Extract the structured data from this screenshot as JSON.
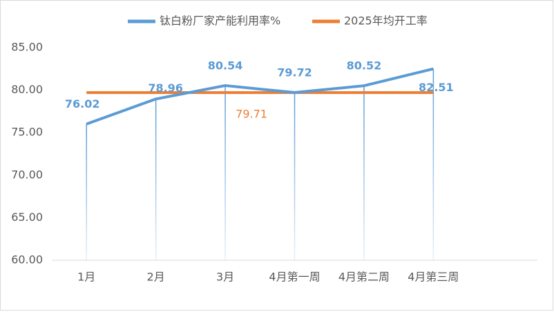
{
  "chart_data": {
    "type": "line",
    "categories": [
      "1月",
      "2月",
      "3月",
      "4月第一周",
      "4月第二周",
      "4月第三周"
    ],
    "series": [
      {
        "name": "钛白粉厂家产能利用率%",
        "color": "#5b9bd5",
        "values": [
          76.02,
          78.96,
          80.54,
          79.72,
          80.52,
          82.51
        ]
      },
      {
        "name": "2025年均开工率",
        "color": "#ed7d31",
        "values": [
          79.71,
          79.71,
          79.71,
          79.71,
          79.71,
          79.71
        ],
        "value_labels": [
          null,
          null,
          "79.71",
          null,
          null,
          null
        ]
      }
    ],
    "ylim": [
      60,
      85
    ],
    "yticks": [
      {
        "value": 60,
        "label": "60.00"
      },
      {
        "value": 65,
        "label": "65.00"
      },
      {
        "value": 70,
        "label": "70.00"
      },
      {
        "value": 75,
        "label": "75.00"
      },
      {
        "value": 80,
        "label": "80.00"
      },
      {
        "value": 85,
        "label": "85.00"
      }
    ],
    "grid": false
  }
}
